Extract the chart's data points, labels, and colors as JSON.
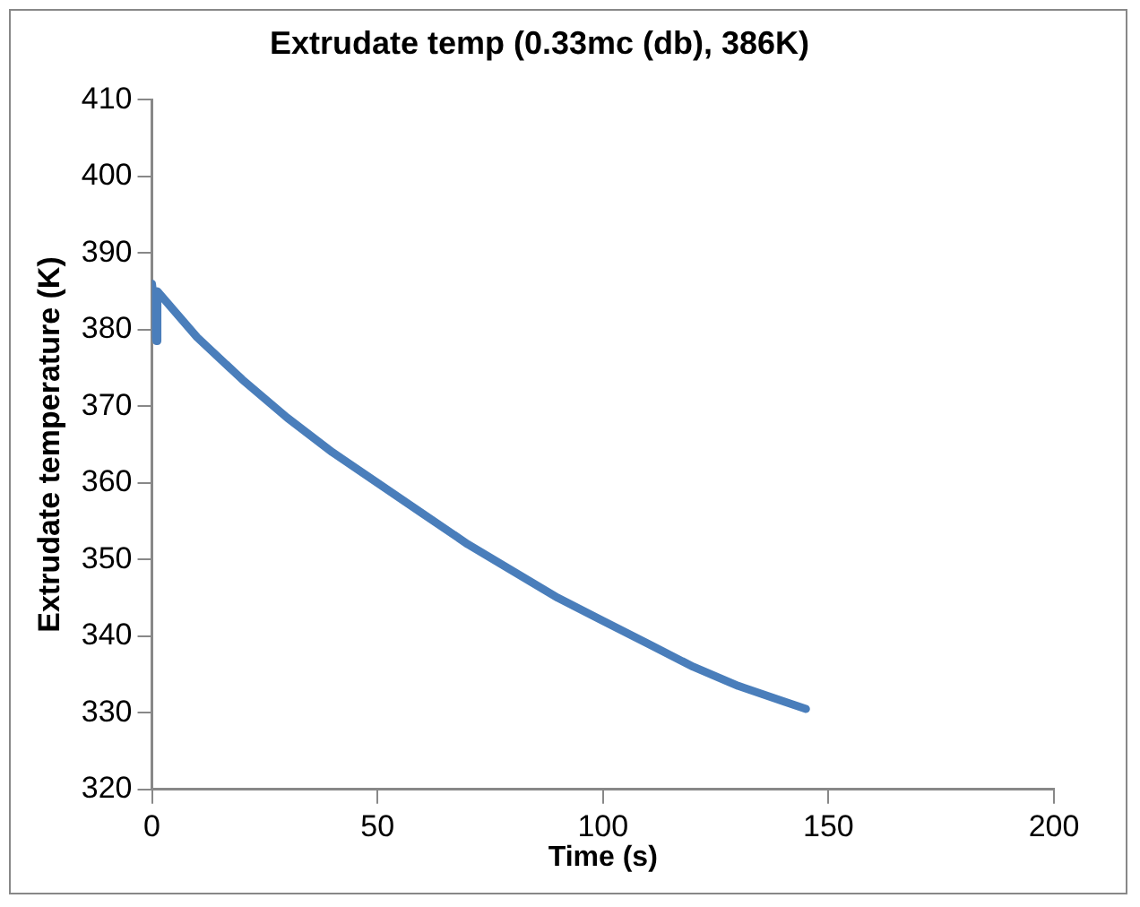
{
  "chart_data": {
    "type": "line",
    "title": "Extrudate temp (0.33mc (db), 386K)",
    "xlabel": "Time (s)",
    "ylabel": "Extrudate temperature (K)",
    "x": [
      0,
      0.4,
      0.8,
      1,
      1.2,
      10,
      20,
      30,
      40,
      50,
      60,
      70,
      80,
      90,
      100,
      110,
      120,
      130,
      140,
      145
    ],
    "series": [
      {
        "color": "#4a7ebb",
        "values": [
          386,
          384,
          379,
          378.5,
          385,
          379,
          373.5,
          368.5,
          364,
          360,
          356,
          352,
          348.5,
          345,
          342,
          339,
          336,
          333.5,
          331.5,
          330.5
        ]
      }
    ],
    "xlim": [
      0,
      200
    ],
    "xticks": [
      0,
      50,
      100,
      150,
      200
    ],
    "ylim": [
      320,
      410
    ],
    "yticks": [
      320,
      330,
      340,
      350,
      360,
      370,
      380,
      390,
      400,
      410
    ],
    "grid": false,
    "legend": false,
    "marker": "none",
    "line_style": "solid"
  }
}
